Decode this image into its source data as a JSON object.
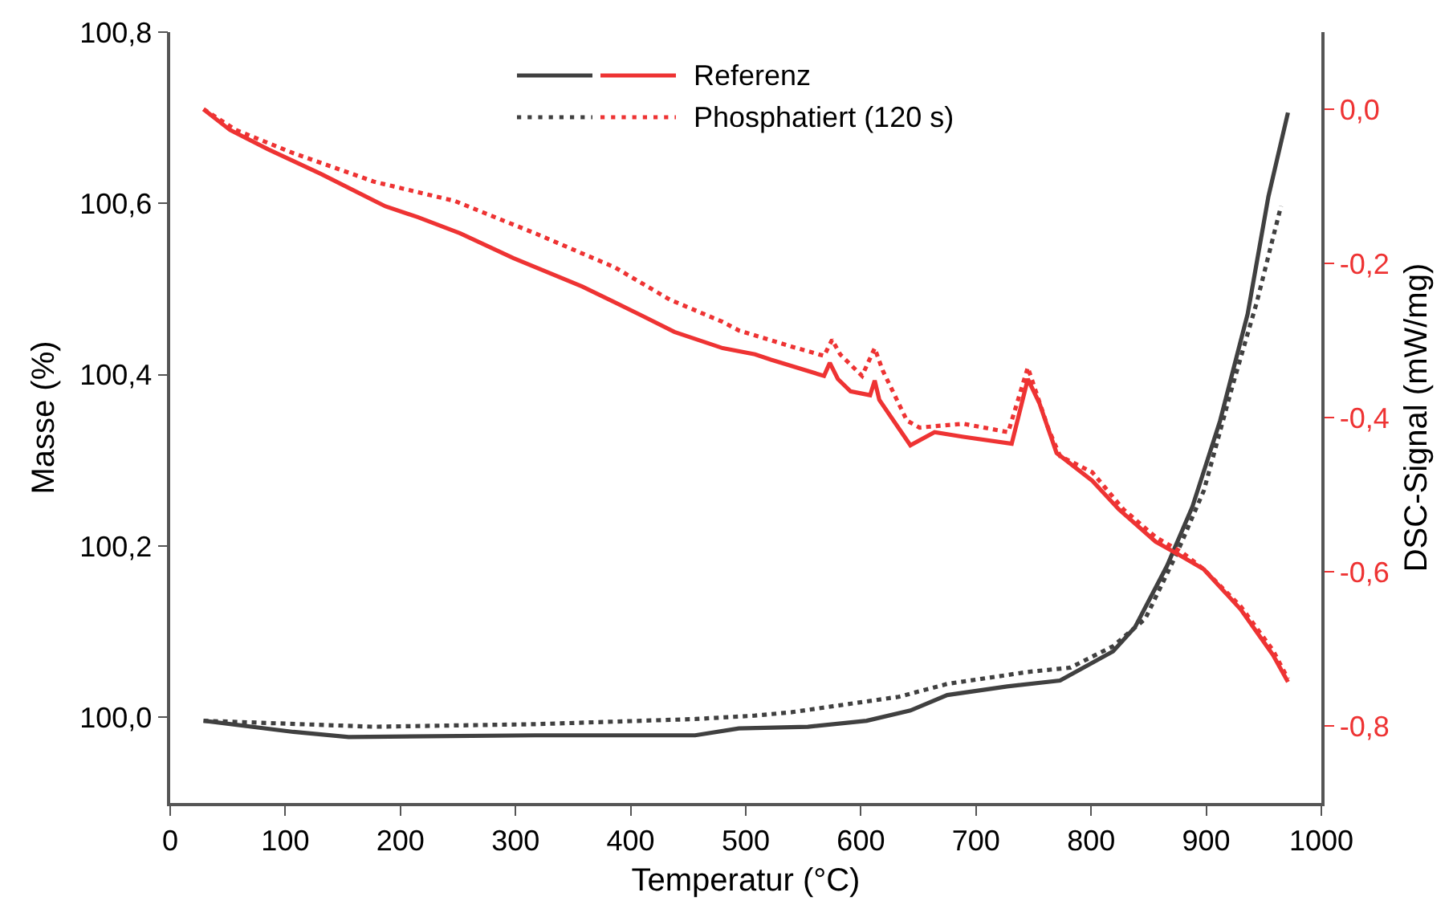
{
  "chart_data": {
    "type": "line",
    "xlabel": "Temperatur (°C)",
    "ylabel": "Masse (%)",
    "y2label": "DSC-Signal (mW/mg)",
    "xlim": [
      0,
      1000
    ],
    "xticks": [
      0,
      100,
      200,
      300,
      400,
      500,
      600,
      700,
      800,
      900,
      1000
    ],
    "ylim": [
      99.9,
      100.8
    ],
    "yticks": [
      {
        "value": 100,
        "label": "100,0"
      },
      {
        "value": 100.2,
        "label": "100,2"
      },
      {
        "value": 100.4,
        "label": "100,4"
      },
      {
        "value": 100.6,
        "label": "100,6"
      },
      {
        "value": 100.8,
        "label": "100,8"
      }
    ],
    "y2lim": [
      -0.9,
      0.1
    ],
    "y2ticks": [
      {
        "value": 0,
        "label": "0,0"
      },
      {
        "value": -0.2,
        "label": "-0,2"
      },
      {
        "value": -0.4,
        "label": "-0,4"
      },
      {
        "value": -0.6,
        "label": "-0,6"
      },
      {
        "value": -0.8,
        "label": "-0,8"
      }
    ],
    "grid": false,
    "legend": "top",
    "marker": "none",
    "series": [
      {
        "color": "#404040",
        "line_style": "solid",
        "x": [
          29,
          107,
          155,
          317,
          456,
          494,
          554,
          605,
          643,
          675,
          727,
          773,
          819,
          838,
          866,
          888,
          912,
          936,
          954,
          971
        ],
        "values": [
          99.996,
          99.983,
          99.977,
          99.979,
          99.979,
          99.987,
          99.989,
          99.996,
          100.008,
          100.026,
          100.036,
          100.043,
          100.077,
          100.105,
          100.177,
          100.246,
          100.346,
          100.471,
          100.608,
          100.706
        ]
      },
      {
        "name": "Referenz",
        "color": "#ee3333",
        "line_style": "solid",
        "axis": "y2",
        "x": [
          29,
          52,
          85,
          131,
          187,
          215,
          252,
          298,
          358,
          410,
          438,
          480,
          508,
          522,
          568,
          573,
          580,
          591,
          608,
          612,
          616,
          643,
          664,
          689,
          731,
          745,
          755,
          770,
          801,
          824,
          856,
          874,
          898,
          930,
          958,
          971
        ],
        "values": [
          0.0,
          -0.027,
          -0.052,
          -0.084,
          -0.126,
          -0.14,
          -0.161,
          -0.193,
          -0.23,
          -0.268,
          -0.289,
          -0.31,
          -0.318,
          -0.325,
          -0.346,
          -0.329,
          -0.35,
          -0.366,
          -0.371,
          -0.352,
          -0.377,
          -0.436,
          -0.419,
          -0.425,
          -0.434,
          -0.35,
          -0.381,
          -0.446,
          -0.482,
          -0.519,
          -0.561,
          -0.576,
          -0.597,
          -0.649,
          -0.708,
          -0.743
        ]
      },
      {
        "color": "#404040",
        "line_style": "dotted",
        "x": [
          29,
          177,
          317,
          456,
          508,
          540,
          633,
          675,
          745,
          782,
          819,
          847,
          874,
          898,
          922,
          944,
          958,
          965
        ],
        "values": [
          99.996,
          99.989,
          99.992,
          99.998,
          100.002,
          100.006,
          100.024,
          100.039,
          100.053,
          100.058,
          100.083,
          100.115,
          100.19,
          100.265,
          100.383,
          100.485,
          100.56,
          100.597
        ]
      },
      {
        "name": "Phosphatiert (120 s)",
        "color": "#ee3333",
        "line_style": "dotted",
        "axis": "y2",
        "x": [
          29,
          57,
          107,
          177,
          247,
          317,
          386,
          434,
          480,
          494,
          540,
          568,
          575,
          582,
          601,
          612,
          619,
          640,
          651,
          689,
          728,
          745,
          763,
          773,
          801,
          828,
          856,
          880,
          898,
          930,
          958,
          971
        ],
        "values": [
          0.0,
          -0.027,
          -0.057,
          -0.094,
          -0.119,
          -0.161,
          -0.205,
          -0.247,
          -0.276,
          -0.287,
          -0.308,
          -0.32,
          -0.299,
          -0.318,
          -0.346,
          -0.31,
          -0.339,
          -0.404,
          -0.413,
          -0.408,
          -0.419,
          -0.335,
          -0.415,
          -0.45,
          -0.471,
          -0.519,
          -0.555,
          -0.576,
          -0.597,
          -0.645,
          -0.702,
          -0.739
        ]
      }
    ]
  }
}
